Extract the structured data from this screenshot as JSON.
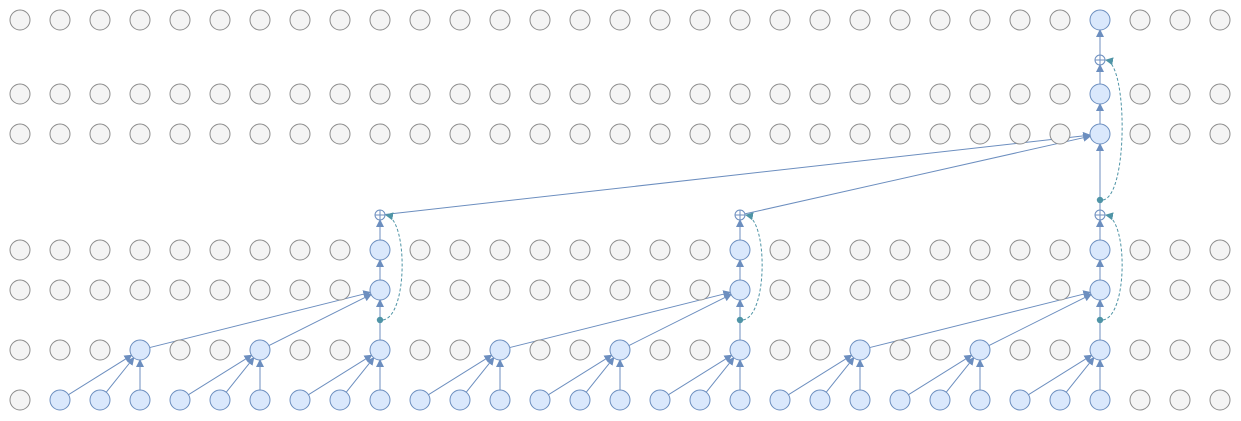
{
  "diagram": {
    "columns": 31,
    "rows": [
      {
        "id": "r0",
        "role": "output"
      },
      {
        "id": "r1",
        "role": "stack2-layer2"
      },
      {
        "id": "r2",
        "role": "stack2-layer1"
      },
      {
        "id": "r3",
        "role": "stack1-layer2"
      },
      {
        "id": "r4",
        "role": "stack1-layer1"
      },
      {
        "id": "r5",
        "role": "dilation-layer"
      },
      {
        "id": "r6",
        "role": "input"
      }
    ],
    "active": {
      "r6": [
        1,
        2,
        3,
        4,
        5,
        6,
        7,
        8,
        9,
        10,
        11,
        12,
        13,
        14,
        15,
        16,
        17,
        18,
        19,
        20,
        21,
        22,
        23,
        24,
        25,
        26,
        27
      ],
      "r5": [
        3,
        6,
        9,
        12,
        15,
        18,
        21,
        24,
        27
      ],
      "r4": [
        9,
        18,
        27
      ],
      "r3": [
        9,
        18,
        27
      ],
      "r2": [
        27
      ],
      "r1": [
        27
      ],
      "r0": [
        27
      ]
    },
    "edges": [
      {
        "from": [
          "r6",
          1
        ],
        "to": [
          "r5",
          3
        ]
      },
      {
        "from": [
          "r6",
          2
        ],
        "to": [
          "r5",
          3
        ]
      },
      {
        "from": [
          "r6",
          3
        ],
        "to": [
          "r5",
          3
        ]
      },
      {
        "from": [
          "r6",
          4
        ],
        "to": [
          "r5",
          6
        ]
      },
      {
        "from": [
          "r6",
          5
        ],
        "to": [
          "r5",
          6
        ]
      },
      {
        "from": [
          "r6",
          6
        ],
        "to": [
          "r5",
          6
        ]
      },
      {
        "from": [
          "r6",
          7
        ],
        "to": [
          "r5",
          9
        ]
      },
      {
        "from": [
          "r6",
          8
        ],
        "to": [
          "r5",
          9
        ]
      },
      {
        "from": [
          "r6",
          9
        ],
        "to": [
          "r5",
          9
        ]
      },
      {
        "from": [
          "r6",
          10
        ],
        "to": [
          "r5",
          12
        ]
      },
      {
        "from": [
          "r6",
          11
        ],
        "to": [
          "r5",
          12
        ]
      },
      {
        "from": [
          "r6",
          12
        ],
        "to": [
          "r5",
          12
        ]
      },
      {
        "from": [
          "r6",
          13
        ],
        "to": [
          "r5",
          15
        ]
      },
      {
        "from": [
          "r6",
          14
        ],
        "to": [
          "r5",
          15
        ]
      },
      {
        "from": [
          "r6",
          15
        ],
        "to": [
          "r5",
          15
        ]
      },
      {
        "from": [
          "r6",
          16
        ],
        "to": [
          "r5",
          18
        ]
      },
      {
        "from": [
          "r6",
          17
        ],
        "to": [
          "r5",
          18
        ]
      },
      {
        "from": [
          "r6",
          18
        ],
        "to": [
          "r5",
          18
        ]
      },
      {
        "from": [
          "r6",
          19
        ],
        "to": [
          "r5",
          21
        ]
      },
      {
        "from": [
          "r6",
          20
        ],
        "to": [
          "r5",
          21
        ]
      },
      {
        "from": [
          "r6",
          21
        ],
        "to": [
          "r5",
          21
        ]
      },
      {
        "from": [
          "r6",
          22
        ],
        "to": [
          "r5",
          24
        ]
      },
      {
        "from": [
          "r6",
          23
        ],
        "to": [
          "r5",
          24
        ]
      },
      {
        "from": [
          "r6",
          24
        ],
        "to": [
          "r5",
          24
        ]
      },
      {
        "from": [
          "r6",
          25
        ],
        "to": [
          "r5",
          27
        ]
      },
      {
        "from": [
          "r6",
          26
        ],
        "to": [
          "r5",
          27
        ]
      },
      {
        "from": [
          "r6",
          27
        ],
        "to": [
          "r5",
          27
        ]
      },
      {
        "from": [
          "r5",
          3
        ],
        "to": [
          "r4",
          9
        ]
      },
      {
        "from": [
          "r5",
          6
        ],
        "to": [
          "r4",
          9
        ]
      },
      {
        "from": [
          "r5",
          9
        ],
        "to": [
          "r4",
          9
        ]
      },
      {
        "from": [
          "r5",
          12
        ],
        "to": [
          "r4",
          18
        ]
      },
      {
        "from": [
          "r5",
          15
        ],
        "to": [
          "r4",
          18
        ]
      },
      {
        "from": [
          "r5",
          18
        ],
        "to": [
          "r4",
          18
        ]
      },
      {
        "from": [
          "r5",
          21
        ],
        "to": [
          "r4",
          27
        ]
      },
      {
        "from": [
          "r5",
          24
        ],
        "to": [
          "r4",
          27
        ]
      },
      {
        "from": [
          "r5",
          27
        ],
        "to": [
          "r4",
          27
        ]
      },
      {
        "from": [
          "r4",
          9
        ],
        "to": [
          "r3",
          9
        ]
      },
      {
        "from": [
          "r4",
          18
        ],
        "to": [
          "r3",
          18
        ]
      },
      {
        "from": [
          "r4",
          27
        ],
        "to": [
          "r3",
          27
        ]
      },
      {
        "from": [
          "r3",
          9
        ],
        "to": [
          "add",
          9
        ]
      },
      {
        "from": [
          "r3",
          18
        ],
        "to": [
          "add",
          18
        ]
      },
      {
        "from": [
          "r3",
          27
        ],
        "to": [
          "add",
          27
        ]
      },
      {
        "from": [
          "add",
          9
        ],
        "to": [
          "r2",
          27
        ]
      },
      {
        "from": [
          "add",
          18
        ],
        "to": [
          "r2",
          27
        ]
      },
      {
        "from": [
          "add",
          27
        ],
        "to": [
          "r2",
          27
        ]
      },
      {
        "from": [
          "r2",
          27
        ],
        "to": [
          "r1",
          27
        ]
      },
      {
        "from": [
          "r1",
          27
        ],
        "to": [
          "add2",
          27
        ]
      },
      {
        "from": [
          "add2",
          27
        ],
        "to": [
          "r0",
          27
        ]
      }
    ],
    "residuals": [
      {
        "branch": "r5",
        "col": 9,
        "target": "add"
      },
      {
        "branch": "r5",
        "col": 18,
        "target": "add"
      },
      {
        "branch": "r5",
        "col": 27,
        "target": "add"
      },
      {
        "branch": "add",
        "col": 27,
        "target": "add2"
      }
    ]
  }
}
